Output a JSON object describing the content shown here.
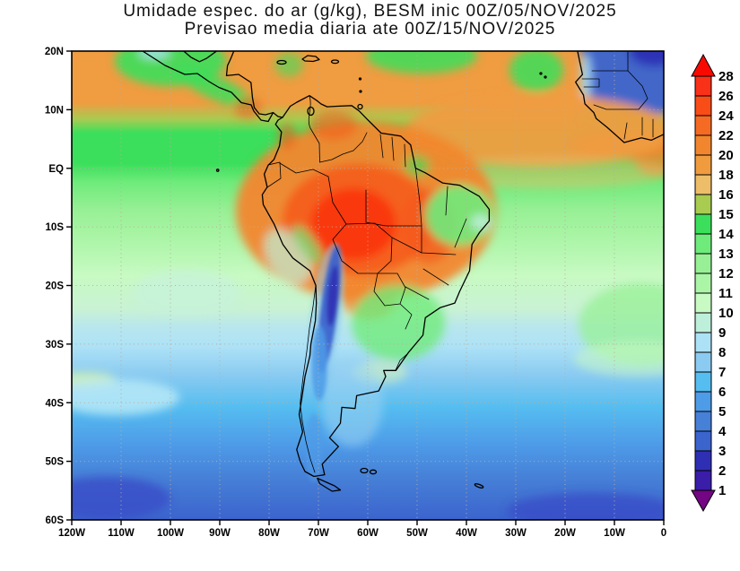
{
  "title": {
    "line1": "Umidade espec. do ar (g/kg), BESM inic 00Z/05/NOV/2025",
    "line2": "Previsao media diaria ate 00Z/15/NOV/2025"
  },
  "axes": {
    "y_ticks": [
      "20N",
      "10N",
      "EQ",
      "10S",
      "20S",
      "30S",
      "40S",
      "50S",
      "60S"
    ],
    "x_ticks": [
      "120W",
      "110W",
      "100W",
      "90W",
      "80W",
      "70W",
      "60W",
      "50W",
      "40W",
      "30W",
      "20W",
      "10W",
      "0"
    ]
  },
  "colorbar": {
    "units": "g/kg",
    "arrow_top_color": "#F90A00",
    "arrow_bottom_color": "#740583",
    "tick_labels": [
      "28",
      "26",
      "24",
      "22",
      "20",
      "18",
      "16",
      "15",
      "14",
      "13",
      "12",
      "11",
      "10",
      "9",
      "8",
      "7",
      "6",
      "5",
      "4",
      "3",
      "2",
      "1"
    ],
    "segment_colors": [
      "#F93118",
      "#F94D17",
      "#F56B23",
      "#F2862E",
      "#F09C3E",
      "#EDBD69",
      "#A8CB50",
      "#3BDF5B",
      "#6FEB7B",
      "#97F095",
      "#ABF5A7",
      "#C8FAC3",
      "#BEEFDA",
      "#ADE2F6",
      "#8BCBF1",
      "#55BDF0",
      "#4E9BE8",
      "#4680D7",
      "#3C64CD",
      "#2F2FB4",
      "#3A1DA8"
    ]
  },
  "chart_data": {
    "type": "filled-contour-map",
    "variable": "specific humidity of air (g/kg)",
    "model": "BESM",
    "init": "00Z/05/NOV/2025",
    "valid_through": "00Z/15/NOV/2025",
    "lon_range": [
      "120W",
      "0"
    ],
    "lat_range": [
      "60S",
      "20N"
    ],
    "levels": [
      1,
      2,
      3,
      4,
      5,
      6,
      7,
      8,
      9,
      10,
      11,
      12,
      13,
      14,
      15,
      16,
      18,
      20,
      22,
      24,
      26,
      28
    ],
    "grid": "dotted every 10 degrees",
    "readings": [
      {
        "region": "Amazon basin core",
        "value_g_kg": "24-28"
      },
      {
        "region": "Tropical band / ITCZ (20N-5N, Atlantic and Caribbean)",
        "value_g_kg": "18-22"
      },
      {
        "region": "NW Africa / Sahara corner",
        "value_g_kg": "2-4"
      },
      {
        "region": "Sahel-Guinea coast strip",
        "value_g_kg": "18-22"
      },
      {
        "region": "Equatorial Pacific green band",
        "value_g_kg": "13-15"
      },
      {
        "region": "Subtropical SE Pacific",
        "value_g_kg": "9-12"
      },
      {
        "region": "Andes dry strip near 22S",
        "value_g_kg": "1-4"
      },
      {
        "region": "SE Brazil / Paraguay",
        "value_g_kg": "13-14"
      },
      {
        "region": "Patagonia and 40S-50S oceans",
        "value_g_kg": "5-7"
      },
      {
        "region": "Southern Ocean 55S-60S",
        "value_g_kg": "2-4"
      }
    ]
  }
}
